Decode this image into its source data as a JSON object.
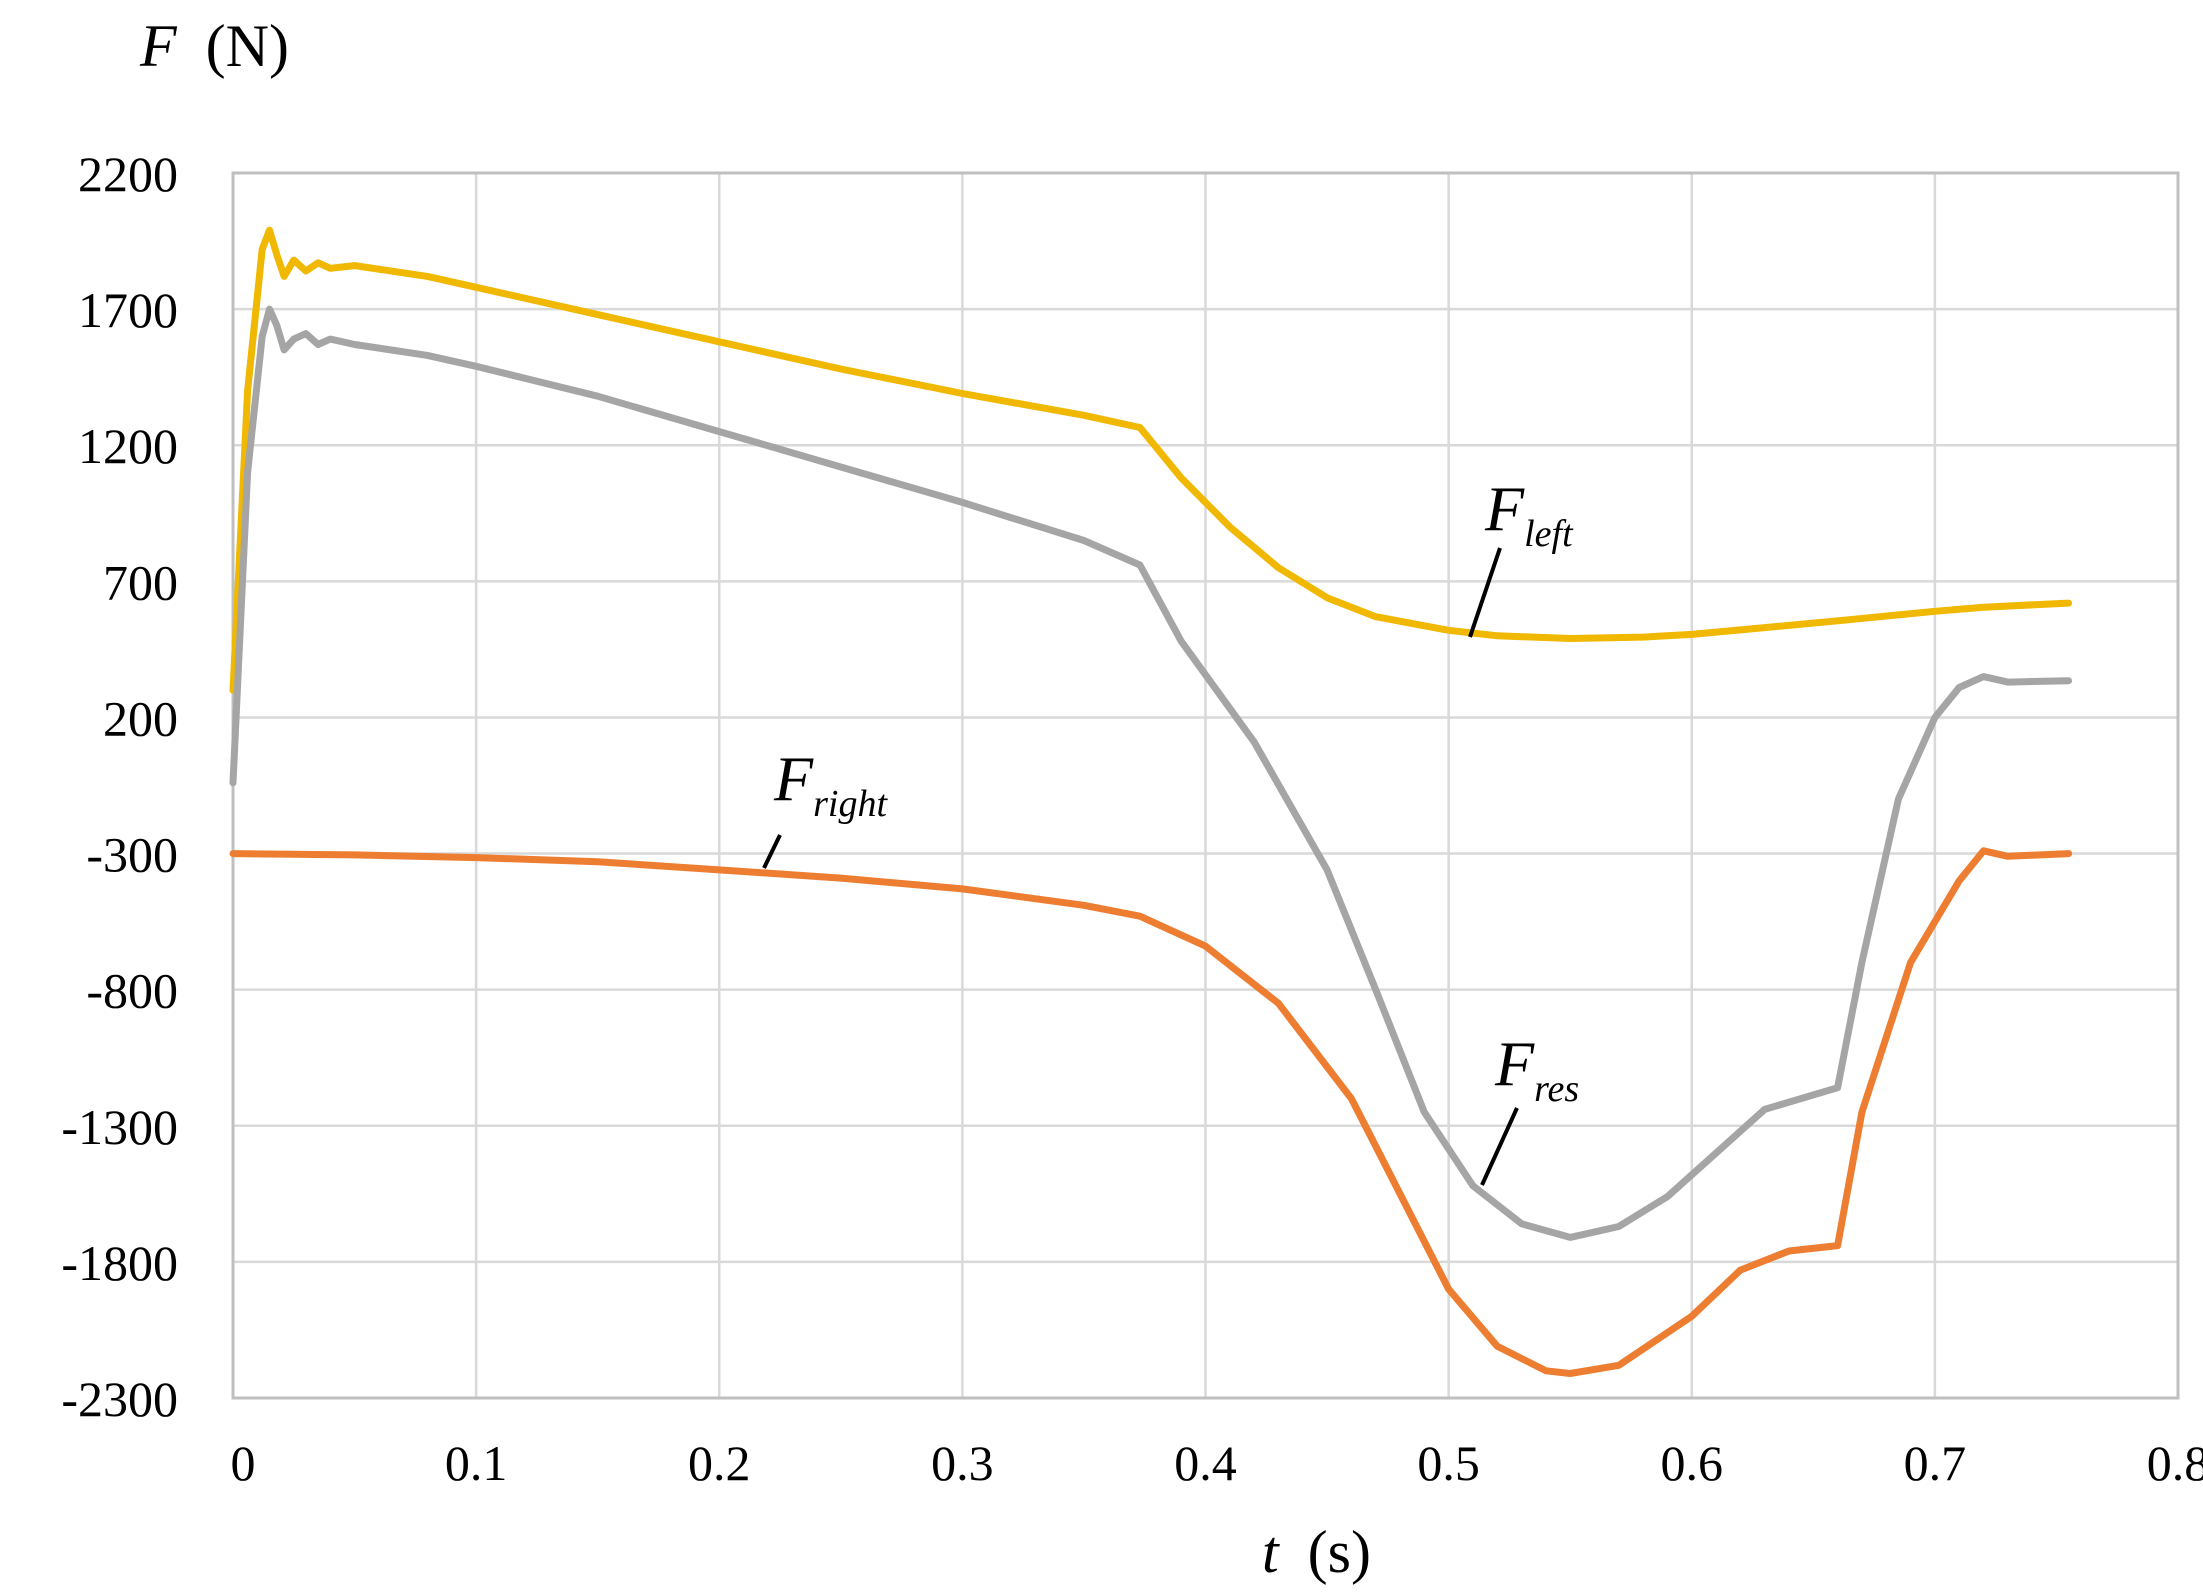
{
  "chart_data": {
    "type": "line",
    "title": "",
    "ylabel": {
      "symbol": "F",
      "unit": "(N)"
    },
    "xlabel": {
      "symbol": "t",
      "unit": "(s)"
    },
    "xlim": [
      0,
      0.8
    ],
    "ylim": [
      -2300,
      2200
    ],
    "x_ticks": [
      "0",
      "0.1",
      "0.2",
      "0.3",
      "0.4",
      "0.5",
      "0.6",
      "0.7",
      "0.8"
    ],
    "y_ticks": [
      "2200",
      "1700",
      "1200",
      "700",
      "200",
      "-300",
      "-800",
      "-1300",
      "-1800",
      "-2300"
    ],
    "x_tick_values": [
      0,
      0.1,
      0.2,
      0.3,
      0.4,
      0.5,
      0.6,
      0.7,
      0.8
    ],
    "y_tick_values": [
      2200,
      1700,
      1200,
      700,
      200,
      -300,
      -800,
      -1300,
      -1800,
      -2300
    ],
    "grid": true,
    "legend": "none",
    "series": [
      {
        "name": "F_left",
        "color": "#f0b800",
        "points": [
          [
            0,
            300
          ],
          [
            0.006,
            1400
          ],
          [
            0.012,
            1920
          ],
          [
            0.015,
            1990
          ],
          [
            0.018,
            1900
          ],
          [
            0.021,
            1820
          ],
          [
            0.025,
            1880
          ],
          [
            0.03,
            1840
          ],
          [
            0.035,
            1870
          ],
          [
            0.04,
            1850
          ],
          [
            0.05,
            1860
          ],
          [
            0.08,
            1820
          ],
          [
            0.1,
            1780
          ],
          [
            0.15,
            1680
          ],
          [
            0.2,
            1580
          ],
          [
            0.25,
            1480
          ],
          [
            0.3,
            1390
          ],
          [
            0.35,
            1310
          ],
          [
            0.373,
            1265
          ],
          [
            0.39,
            1080
          ],
          [
            0.41,
            900
          ],
          [
            0.43,
            750
          ],
          [
            0.45,
            640
          ],
          [
            0.47,
            570
          ],
          [
            0.5,
            520
          ],
          [
            0.52,
            500
          ],
          [
            0.55,
            490
          ],
          [
            0.58,
            495
          ],
          [
            0.6,
            505
          ],
          [
            0.63,
            530
          ],
          [
            0.66,
            555
          ],
          [
            0.7,
            590
          ],
          [
            0.72,
            605
          ],
          [
            0.755,
            620
          ]
        ]
      },
      {
        "name": "F_res",
        "color": "#a5a5a5",
        "points": [
          [
            0,
            -40
          ],
          [
            0.006,
            1100
          ],
          [
            0.012,
            1600
          ],
          [
            0.015,
            1700
          ],
          [
            0.018,
            1640
          ],
          [
            0.021,
            1550
          ],
          [
            0.025,
            1590
          ],
          [
            0.03,
            1610
          ],
          [
            0.035,
            1570
          ],
          [
            0.04,
            1590
          ],
          [
            0.05,
            1570
          ],
          [
            0.08,
            1530
          ],
          [
            0.1,
            1490
          ],
          [
            0.15,
            1380
          ],
          [
            0.2,
            1250
          ],
          [
            0.25,
            1120
          ],
          [
            0.3,
            990
          ],
          [
            0.35,
            850
          ],
          [
            0.373,
            760
          ],
          [
            0.39,
            480
          ],
          [
            0.42,
            110
          ],
          [
            0.45,
            -360
          ],
          [
            0.47,
            -800
          ],
          [
            0.49,
            -1250
          ],
          [
            0.51,
            -1520
          ],
          [
            0.53,
            -1660
          ],
          [
            0.55,
            -1710
          ],
          [
            0.57,
            -1670
          ],
          [
            0.59,
            -1560
          ],
          [
            0.61,
            -1400
          ],
          [
            0.63,
            -1240
          ],
          [
            0.66,
            -1160
          ],
          [
            0.67,
            -700
          ],
          [
            0.685,
            -100
          ],
          [
            0.7,
            200
          ],
          [
            0.71,
            310
          ],
          [
            0.72,
            350
          ],
          [
            0.73,
            330
          ],
          [
            0.755,
            335
          ]
        ]
      },
      {
        "name": "F_right",
        "color": "#ed7d31",
        "points": [
          [
            0,
            -300
          ],
          [
            0.05,
            -305
          ],
          [
            0.1,
            -315
          ],
          [
            0.15,
            -330
          ],
          [
            0.2,
            -360
          ],
          [
            0.25,
            -390
          ],
          [
            0.3,
            -430
          ],
          [
            0.35,
            -490
          ],
          [
            0.373,
            -530
          ],
          [
            0.4,
            -640
          ],
          [
            0.43,
            -850
          ],
          [
            0.46,
            -1200
          ],
          [
            0.48,
            -1550
          ],
          [
            0.5,
            -1900
          ],
          [
            0.52,
            -2110
          ],
          [
            0.54,
            -2200
          ],
          [
            0.55,
            -2210
          ],
          [
            0.57,
            -2180
          ],
          [
            0.6,
            -2000
          ],
          [
            0.62,
            -1830
          ],
          [
            0.64,
            -1760
          ],
          [
            0.66,
            -1740
          ],
          [
            0.67,
            -1250
          ],
          [
            0.69,
            -700
          ],
          [
            0.71,
            -400
          ],
          [
            0.72,
            -290
          ],
          [
            0.73,
            -310
          ],
          [
            0.755,
            -300
          ]
        ]
      }
    ],
    "annotations": [
      {
        "main": "F",
        "sub": "left",
        "anchor": [
          0.51,
          520
        ]
      },
      {
        "main": "F",
        "sub": "right",
        "anchor": [
          0.218,
          360
        ]
      },
      {
        "main": "F",
        "sub": "res",
        "anchor": [
          0.512,
          -1510
        ]
      }
    ]
  }
}
